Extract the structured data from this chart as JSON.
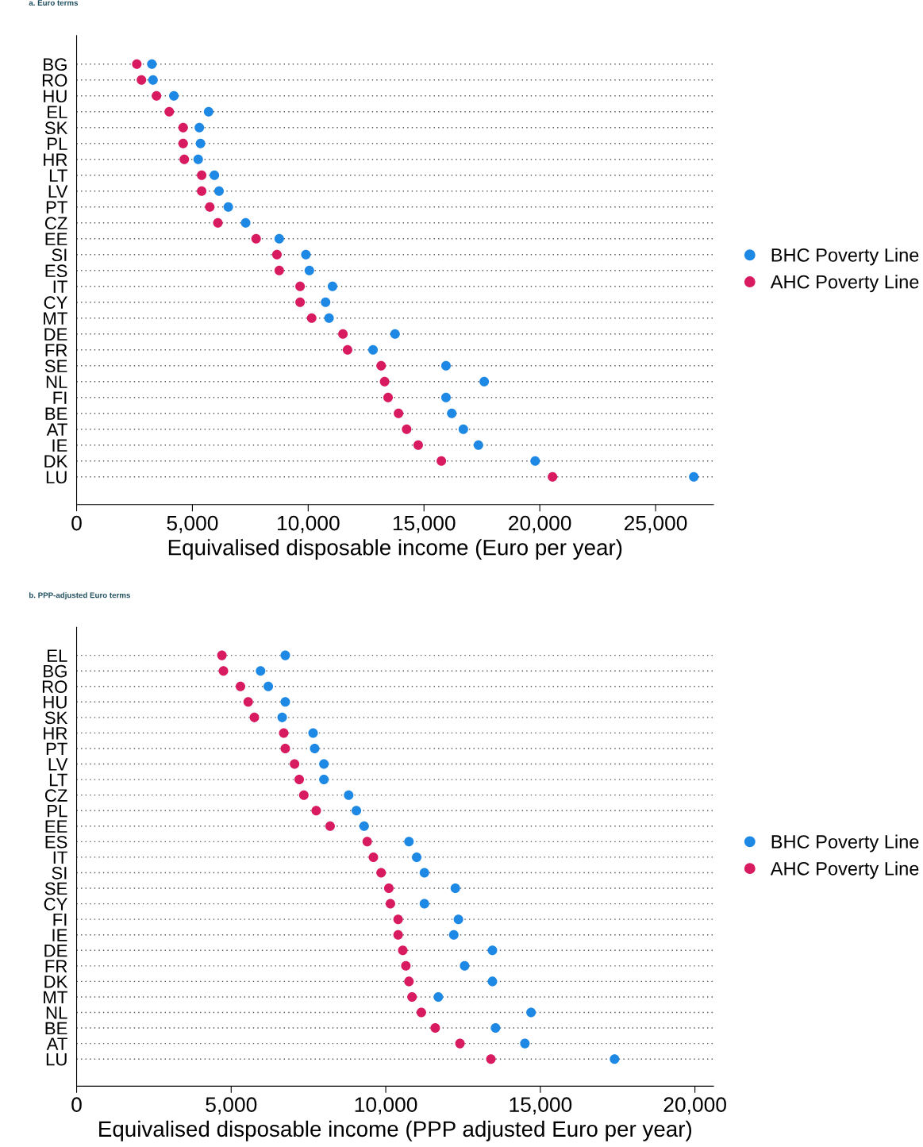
{
  "chart_data": [
    {
      "type": "scatter",
      "title": "a. Euro terms",
      "xlabel": "Equivalised disposable income (Euro per year)",
      "categories": [
        "BG",
        "RO",
        "HU",
        "EL",
        "SK",
        "PL",
        "HR",
        "LT",
        "LV",
        "PT",
        "CZ",
        "EE",
        "SI",
        "ES",
        "IT",
        "CY",
        "MT",
        "DE",
        "FR",
        "SE",
        "NL",
        "FI",
        "BE",
        "AT",
        "IE",
        "DK",
        "LU"
      ],
      "series": [
        {
          "name": "BHC Poverty Line",
          "color": "#1e88e5",
          "values": [
            3250,
            3300,
            4200,
            5700,
            5300,
            5350,
            5250,
            5950,
            6150,
            6550,
            7300,
            8750,
            9900,
            10050,
            11050,
            10750,
            10900,
            13750,
            12800,
            15950,
            17600,
            15950,
            16200,
            16700,
            17350,
            19800,
            26650
          ]
        },
        {
          "name": "AHC Poverty Line",
          "color": "#d81b60",
          "values": [
            2600,
            2800,
            3450,
            4000,
            4600,
            4600,
            4650,
            5400,
            5400,
            5750,
            6100,
            7750,
            8650,
            8750,
            9650,
            9650,
            10150,
            11500,
            11700,
            13150,
            13300,
            13450,
            13900,
            14250,
            14750,
            15750,
            20550
          ]
        }
      ],
      "xlim": [
        0,
        27500
      ],
      "xticks": [
        {
          "value": 0,
          "label": "0"
        },
        {
          "value": 5000,
          "label": "5,000"
        },
        {
          "value": 10000,
          "label": "10,000"
        },
        {
          "value": 15000,
          "label": "15,000"
        },
        {
          "value": 20000,
          "label": "20,000"
        },
        {
          "value": 25000,
          "label": "25,000"
        }
      ],
      "grid": "y",
      "legend": "right",
      "marker": "circle",
      "orientation": "horizontal"
    },
    {
      "type": "scatter",
      "title": "b. PPP-adjusted Euro terms",
      "xlabel": "Equivalised disposable income (PPP adjusted Euro per year)",
      "categories": [
        "EL",
        "BG",
        "RO",
        "HU",
        "SK",
        "HR",
        "PT",
        "LV",
        "LT",
        "CZ",
        "PL",
        "EE",
        "ES",
        "IT",
        "SI",
        "SE",
        "CY",
        "FI",
        "IE",
        "DE",
        "FR",
        "DK",
        "MT",
        "NL",
        "BE",
        "AT",
        "LU"
      ],
      "series": [
        {
          "name": "BHC Poverty Line",
          "color": "#1e88e5",
          "values": [
            6750,
            5950,
            6200,
            6750,
            6650,
            7650,
            7700,
            8000,
            8000,
            8800,
            9050,
            9300,
            10750,
            11000,
            11250,
            12250,
            11250,
            12350,
            12200,
            13450,
            12550,
            13450,
            11700,
            14700,
            13550,
            14500,
            17400
          ]
        },
        {
          "name": "AHC Poverty Line",
          "color": "#d81b60",
          "values": [
            4700,
            4750,
            5300,
            5550,
            5750,
            6700,
            6750,
            7050,
            7200,
            7350,
            7750,
            8200,
            9400,
            9600,
            9850,
            10100,
            10150,
            10400,
            10400,
            10550,
            10650,
            10750,
            10850,
            11150,
            11600,
            12400,
            13400
          ]
        }
      ],
      "xlim": [
        0,
        20600
      ],
      "xticks": [
        {
          "value": 0,
          "label": "0"
        },
        {
          "value": 5000,
          "label": "5,000"
        },
        {
          "value": 10000,
          "label": "10,000"
        },
        {
          "value": 15000,
          "label": "15,000"
        },
        {
          "value": 20000,
          "label": "20,000"
        }
      ],
      "grid": "y",
      "legend": "right",
      "marker": "circle",
      "orientation": "horizontal"
    }
  ]
}
